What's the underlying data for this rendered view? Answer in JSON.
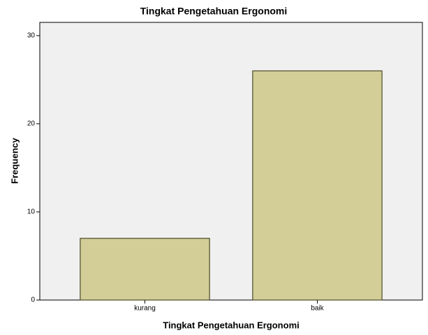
{
  "chart_data": {
    "type": "bar",
    "title": "Tingkat Pengetahuan Ergonomi",
    "x_label": "Tingkat Pengetahuan Ergonomi",
    "y_label": "Frequency",
    "categories": [
      "kurang",
      "baik"
    ],
    "values": [
      7,
      26
    ],
    "color": "#d3ce97",
    "ylim": [
      0,
      31.5
    ],
    "yticks": [
      0,
      10,
      20,
      30
    ],
    "grid": false
  }
}
